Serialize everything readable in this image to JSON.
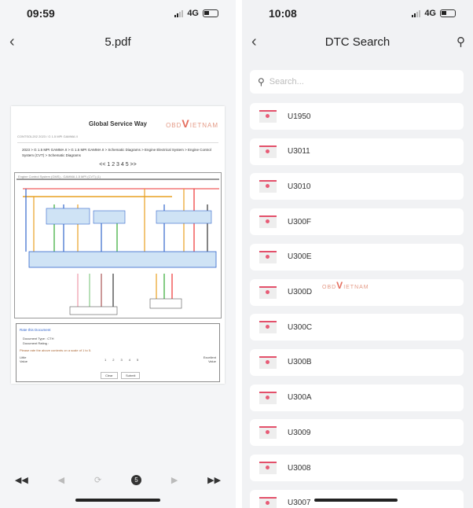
{
  "left": {
    "time": "09:59",
    "network": "4G",
    "title": "5.pdf",
    "pdf": {
      "header": "Global Service Way",
      "logo": "OBD VIETNAM",
      "doc_id": "CONTSOL202 2023 / G 1.5 MPI GAMMA II",
      "breadcrumb": "2023 > G 1.5 MPI GAMMA II > G 1.5 MPI GAMMA II > Schematic Diagrams > Engine Electrical System > Engine Control System (CVT) > Schematic Diagrams",
      "pager": "<< 1 2 3 4 5 >>",
      "diagram_title": "Engine Control System (GMS) - GAMMA 1.5 MPI (CVT) (1)",
      "rating": {
        "title": "Rate this Document",
        "type": "Document Type : CTH",
        "rating": "Document Rating :",
        "prompt": "Please rate the above contents on a scale of 1 to 5.",
        "low": "Little Value",
        "high": "Excellent Value",
        "scale": [
          "1",
          "2",
          "3",
          "4",
          "5"
        ],
        "clear": "Clear",
        "submit": "Submit"
      }
    },
    "toolbar": [
      "first-page-icon",
      "prev-page-icon",
      "rotate-icon",
      "page-number-icon",
      "next-page-icon",
      "last-page-icon"
    ],
    "page_badge": "5"
  },
  "right": {
    "time": "10:08",
    "network": "4G",
    "title": "DTC Search",
    "search_placeholder": "Search...",
    "watermark": "OBD VIETNAM",
    "codes": [
      "U1950",
      "U3011",
      "U3010",
      "U300F",
      "U300E",
      "U300D",
      "U300C",
      "U300B",
      "U300A",
      "U3009",
      "U3008",
      "U3007"
    ]
  },
  "colors": {
    "accent": "#e3506a"
  }
}
